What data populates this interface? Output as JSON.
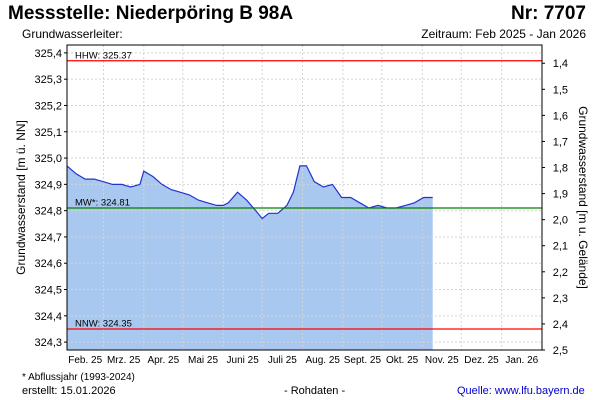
{
  "header": {
    "title": "Messstelle: Niederpöring B 98A",
    "number": "Nr: 7707",
    "subtitle": "Grundwasserleiter:",
    "period": "Zeitraum: Feb 2025 - Jan 2026"
  },
  "footer": {
    "footnote": "* Abflussjahr (1993-2024)",
    "created": "erstellt:  15.01.2026",
    "raw": "- Rohdaten -",
    "source": "Quelle: www.lfu.bayern.de"
  },
  "chart_data": {
    "type": "area",
    "ylabel": "Grundwasserstand [m ü. NN]",
    "ylabel_right": "Grundwasserstand [m u. Gelände]",
    "ylim": [
      324.27,
      325.43
    ],
    "yticks": [
      "324,3",
      "324,4",
      "324,5",
      "324,6",
      "324,7",
      "324,8",
      "324,9",
      "325,0",
      "325,1",
      "325,2",
      "325,3",
      "325,4"
    ],
    "ylim_right": [
      1.33,
      2.5
    ],
    "yticks_right": [
      "1,4",
      "1,5",
      "1,6",
      "1,7",
      "1,8",
      "1,9",
      "2,0",
      "2,1",
      "2,2",
      "2,3",
      "2,4",
      "2,5"
    ],
    "x_range": [
      "2025-02-01",
      "2026-02-01"
    ],
    "month_labels": [
      "Feb. 25",
      "Mrz. 25",
      "Apr. 25",
      "Mai 25",
      "Juni 25",
      "Juli 25",
      "Aug. 25",
      "Sept. 25",
      "Okt. 25",
      "Nov. 25",
      "Dez. 25",
      "Jan. 26"
    ],
    "grid": true,
    "fill_color": "#a9c8f0",
    "line_color": "#2233cc",
    "series": [
      {
        "x": [
          "2025-02-01",
          "2025-02-08",
          "2025-02-15",
          "2025-02-22",
          "2025-03-01",
          "2025-03-08",
          "2025-03-15",
          "2025-03-22",
          "2025-03-29",
          "2025-04-01",
          "2025-04-08",
          "2025-04-15",
          "2025-04-22",
          "2025-04-29",
          "2025-05-06",
          "2025-05-13",
          "2025-05-20",
          "2025-05-27",
          "2025-06-01",
          "2025-06-05",
          "2025-06-12",
          "2025-06-19",
          "2025-06-26",
          "2025-07-01",
          "2025-07-06",
          "2025-07-13",
          "2025-07-20",
          "2025-07-25",
          "2025-07-30",
          "2025-08-04",
          "2025-08-10",
          "2025-08-17",
          "2025-08-24",
          "2025-08-31",
          "2025-09-07",
          "2025-09-14",
          "2025-09-21",
          "2025-09-28",
          "2025-10-05",
          "2025-10-12",
          "2025-10-19",
          "2025-10-26",
          "2025-11-02",
          "2025-11-09"
        ],
        "y": [
          324.97,
          324.94,
          324.92,
          324.92,
          324.91,
          324.9,
          324.9,
          324.89,
          324.9,
          324.95,
          324.93,
          324.9,
          324.88,
          324.87,
          324.86,
          324.84,
          324.83,
          324.82,
          324.82,
          324.83,
          324.87,
          324.84,
          324.8,
          324.77,
          324.79,
          324.79,
          324.82,
          324.87,
          324.97,
          324.97,
          324.91,
          324.89,
          324.9,
          324.85,
          324.85,
          324.83,
          324.81,
          324.82,
          324.81,
          324.81,
          324.82,
          324.83,
          324.85,
          324.85
        ]
      }
    ],
    "reference_lines": [
      {
        "label": "HHW: 325.37",
        "value": 325.37,
        "color": "#ff0000"
      },
      {
        "label": "MW*: 324.81",
        "value": 324.81,
        "color": "#008000"
      },
      {
        "label": "NNW: 324.35",
        "value": 324.35,
        "color": "#ff0000"
      }
    ]
  }
}
